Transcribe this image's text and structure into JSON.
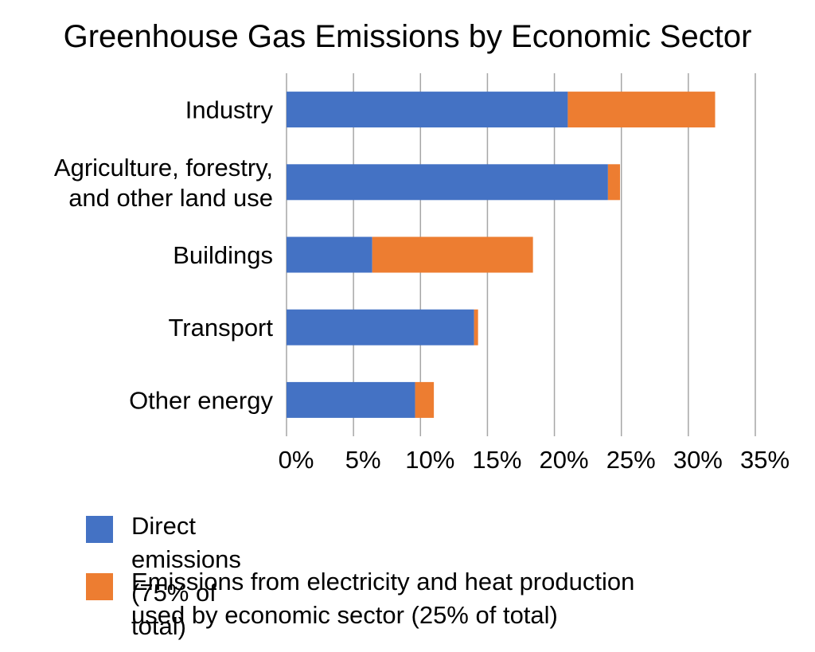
{
  "colors": {
    "direct": "#4472C4",
    "electricity": "#ED7D31",
    "gridline": "#A6A6A6"
  },
  "chart_data": {
    "type": "bar",
    "orientation": "horizontal",
    "stacked": true,
    "title": "Greenhouse Gas Emissions by Economic Sector",
    "xlabel": "",
    "ylabel": "",
    "xlim": [
      0,
      35
    ],
    "x_ticks": [
      "0%",
      "5%",
      "10%",
      "15%",
      "20%",
      "25%",
      "30%",
      "35%"
    ],
    "grid": "vertical",
    "legend_position": "bottom",
    "categories": [
      [
        "Industry"
      ],
      [
        "Agriculture, forestry,",
        "and other land use"
      ],
      [
        "Buildings"
      ],
      [
        "Transport"
      ],
      [
        "Other energy"
      ]
    ],
    "series": [
      {
        "name": "Direct emissions (75% of total)",
        "values": [
          21,
          24,
          6.4,
          14,
          9.6
        ]
      },
      {
        "name": "Emissions from electricity and heat production\nused by economic sector (25% of total)",
        "values": [
          11,
          0.9,
          12,
          0.3,
          1.4
        ]
      }
    ]
  }
}
